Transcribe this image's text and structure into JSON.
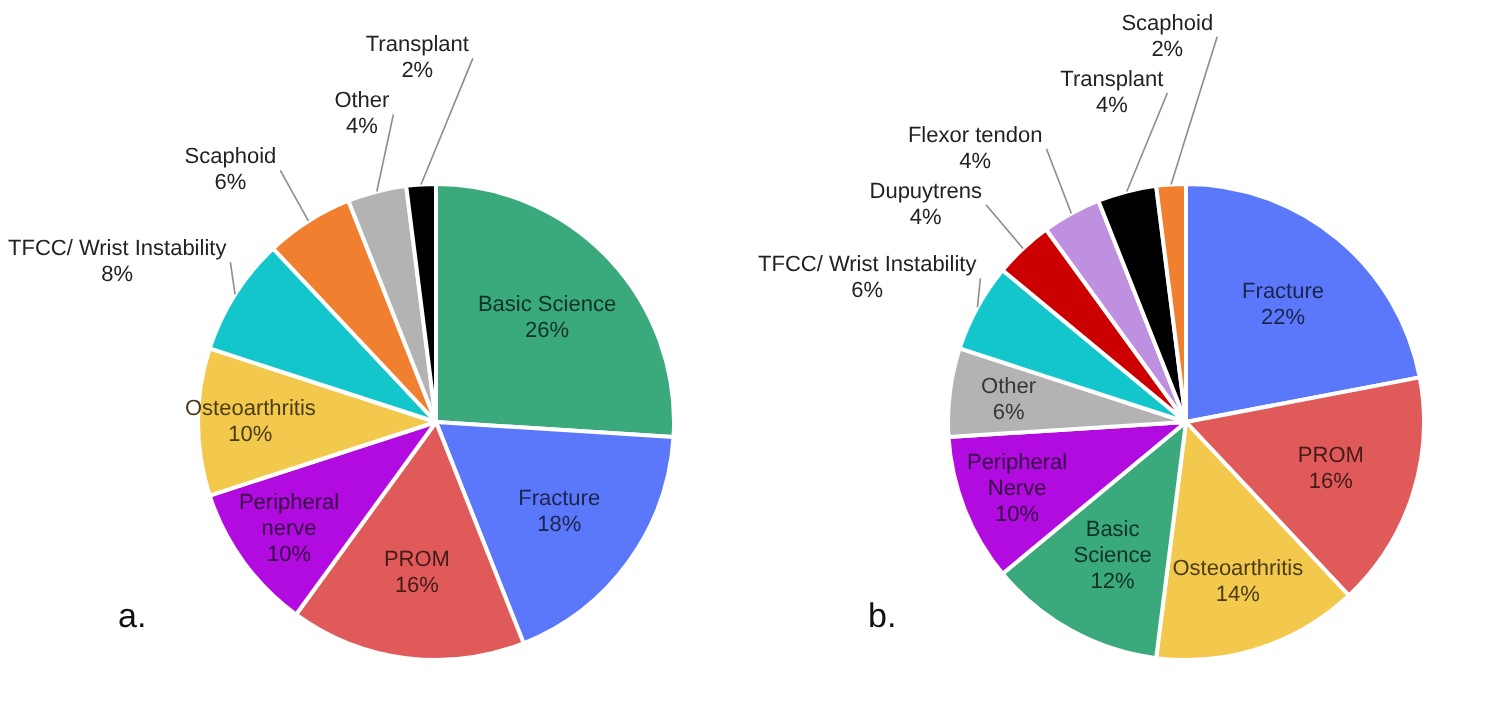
{
  "chart_data": [
    {
      "type": "pie",
      "categories": [
        "Basic Science",
        "Fracture",
        "PROM",
        "Peripheral nerve",
        "Osteoarthritis",
        "TFCC/ Wrist Instability",
        "Scaphoid",
        "Other",
        "Transplant"
      ],
      "values": [
        26,
        18,
        16,
        10,
        10,
        8,
        6,
        4,
        2
      ],
      "value_labels": [
        "26%",
        "18%",
        "16%",
        "10%",
        "10%",
        "8%",
        "6%",
        "4%",
        "2%"
      ],
      "colors": [
        "#3aa97b",
        "#5b77fa",
        "#e05a5a",
        "#b20be0",
        "#f2c94c",
        "#12c6cc",
        "#f08030",
        "#b3b3b3",
        "#000000"
      ],
      "annotations": [
        "a."
      ]
    },
    {
      "type": "pie",
      "categories": [
        "Fracture",
        "PROM",
        "Osteoarthritis",
        "Basic Science",
        "Peripheral Nerve",
        "Other",
        "TFCC/ Wrist Instability",
        "Dupuytrens",
        "Flexor tendon",
        "Transplant",
        "Scaphoid"
      ],
      "values": [
        22,
        16,
        14,
        12,
        10,
        6,
        6,
        4,
        4,
        4,
        2
      ],
      "value_labels": [
        "22%",
        "16%",
        "14%",
        "12%",
        "10%",
        "6%",
        "6%",
        "4%",
        "4%",
        "4%",
        "2%"
      ],
      "colors": [
        "#5b77fa",
        "#e05a5a",
        "#f2c94c",
        "#3aa97b",
        "#b20be0",
        "#b3b3b3",
        "#12c6cc",
        "#cc0000",
        "#c090e0",
        "#000000",
        "#f08030"
      ],
      "annotations": [
        "b."
      ]
    }
  ]
}
